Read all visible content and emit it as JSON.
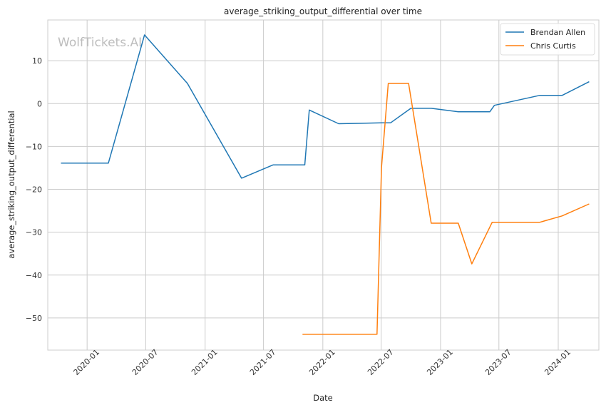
{
  "chart_data": {
    "type": "line",
    "title": "average_striking_output_differential over time",
    "xlabel": "Date",
    "ylabel": "average_striking_output_differential",
    "watermark": "WolfTickets.AI",
    "x_ticks": [
      "2020-01",
      "2020-07",
      "2021-01",
      "2021-07",
      "2022-01",
      "2022-07",
      "2023-01",
      "2023-07",
      "2024-01"
    ],
    "y_ticks": [
      "10",
      "0",
      "−10",
      "−20",
      "−30",
      "−40",
      "−50"
    ],
    "y_tick_values": [
      10,
      0,
      -10,
      -20,
      -30,
      -40,
      -50
    ],
    "xlim": [
      "2019-09-01",
      "2024-05-06"
    ],
    "ylim": [
      -57.5,
      19.5
    ],
    "grid": true,
    "legend_position": "top-right",
    "series": [
      {
        "name": "Brendan Allen",
        "color": "#1f77b4",
        "points": [
          [
            "2019-10-12",
            -13.9
          ],
          [
            "2020-03-07",
            -13.9
          ],
          [
            "2020-06-27",
            16.0
          ],
          [
            "2020-11-07",
            4.7
          ],
          [
            "2021-04-24",
            -17.4
          ],
          [
            "2021-07-31",
            -14.3
          ],
          [
            "2021-11-06",
            -14.3
          ],
          [
            "2021-11-20",
            -1.5
          ],
          [
            "2022-02-19",
            -4.7
          ],
          [
            "2022-07-02",
            -4.5
          ],
          [
            "2022-07-30",
            -4.5
          ],
          [
            "2022-10-01",
            -1.1
          ],
          [
            "2022-12-03",
            -1.1
          ],
          [
            "2023-02-25",
            -1.9
          ],
          [
            "2023-06-03",
            -1.9
          ],
          [
            "2023-06-17",
            -0.4
          ],
          [
            "2023-11-04",
            1.9
          ],
          [
            "2024-01-13",
            1.9
          ],
          [
            "2024-04-06",
            5.1
          ]
        ]
      },
      {
        "name": "Chris Curtis",
        "color": "#ff7f0e",
        "points": [
          [
            "2021-10-30",
            -53.8
          ],
          [
            "2022-06-18",
            -53.8
          ],
          [
            "2022-07-02",
            -14.9
          ],
          [
            "2022-07-23",
            4.7
          ],
          [
            "2022-09-24",
            4.7
          ],
          [
            "2022-12-03",
            -27.9
          ],
          [
            "2023-02-25",
            -27.9
          ],
          [
            "2023-04-08",
            -37.4
          ],
          [
            "2023-06-10",
            -27.7
          ],
          [
            "2023-11-04",
            -27.7
          ],
          [
            "2024-01-13",
            -26.2
          ],
          [
            "2024-04-06",
            -23.4
          ]
        ]
      }
    ]
  }
}
